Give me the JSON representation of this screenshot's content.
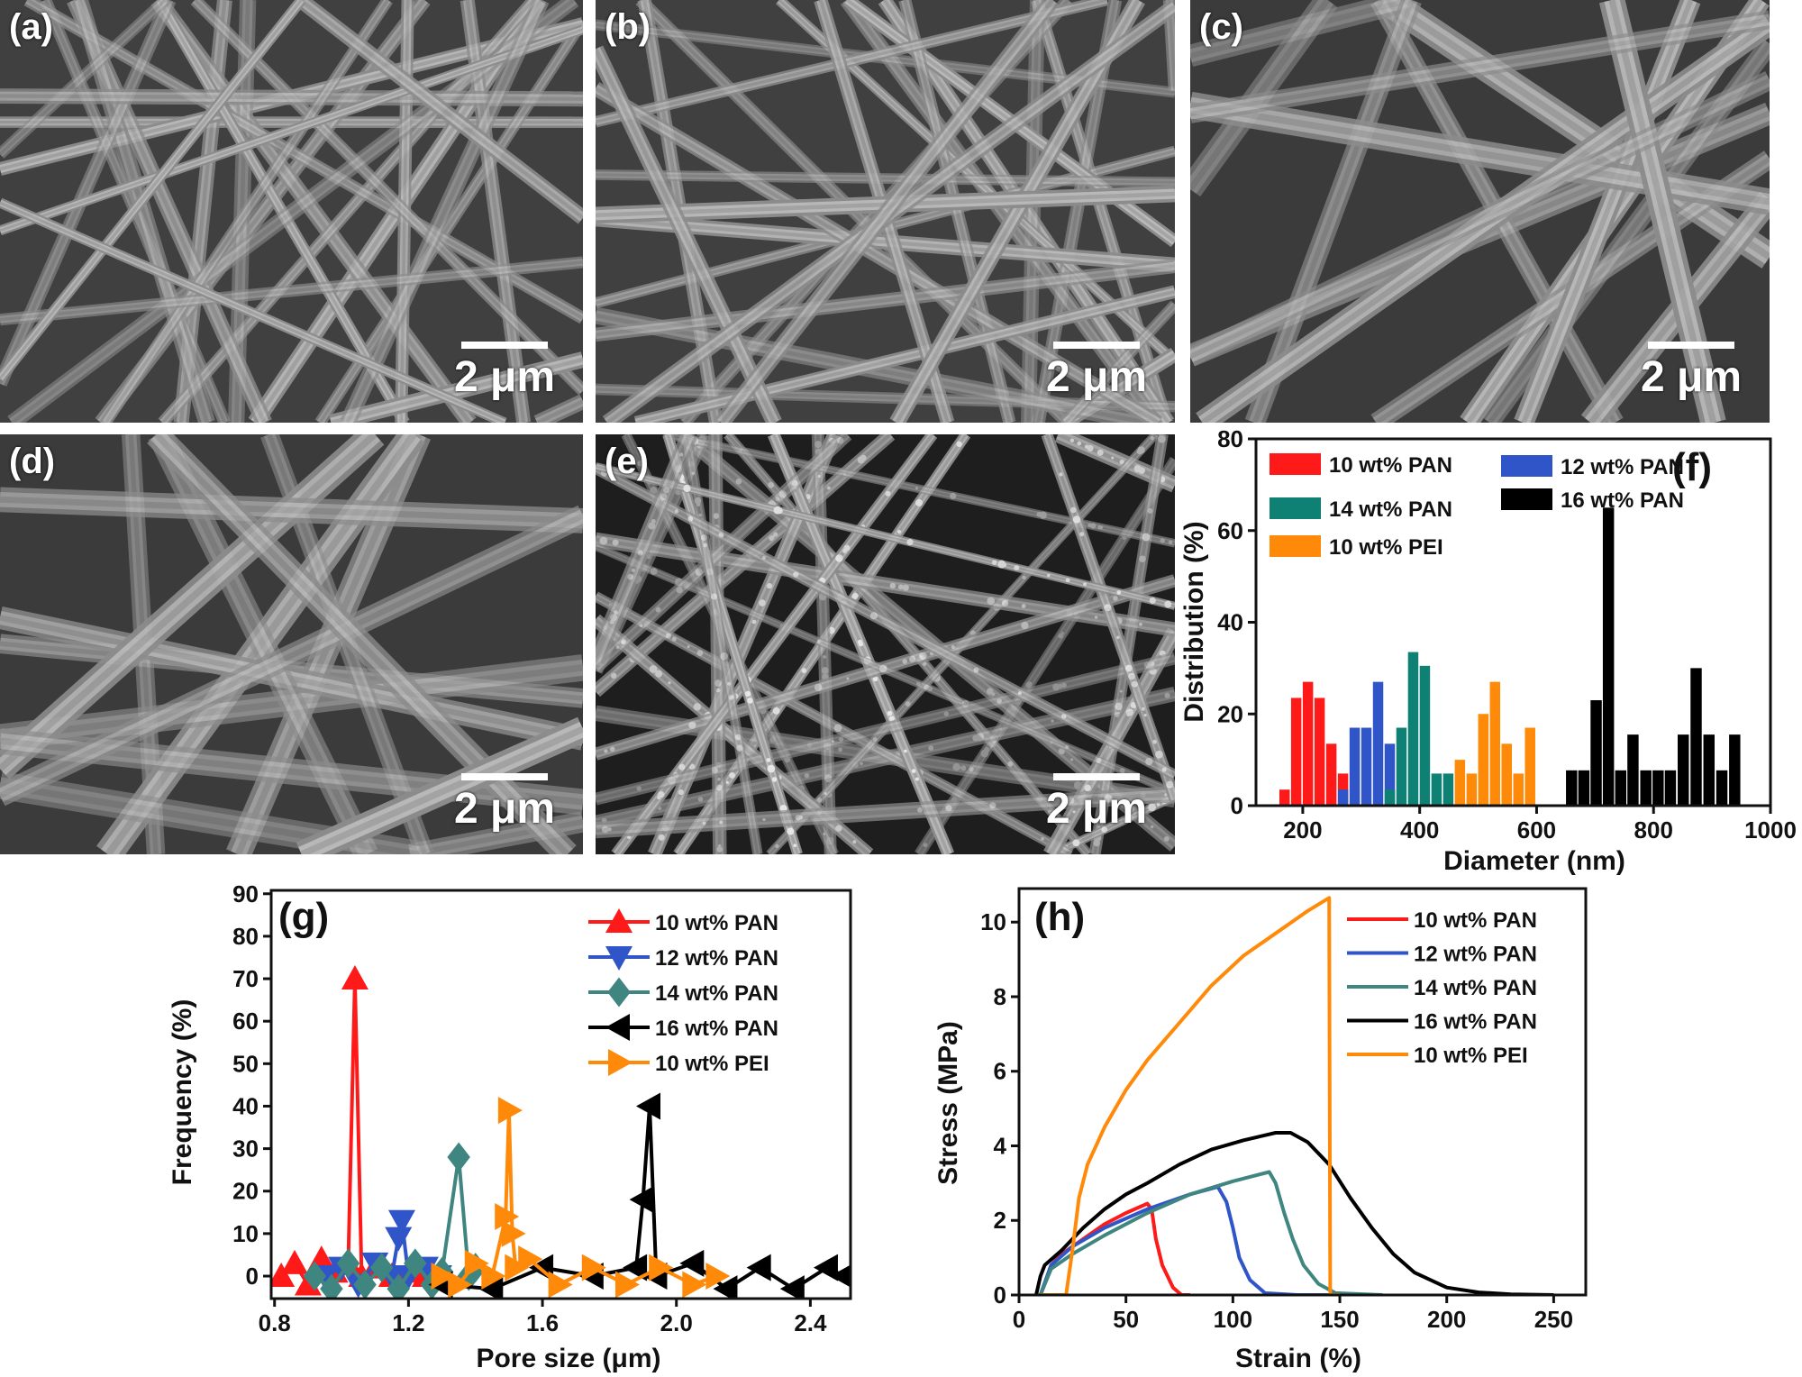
{
  "panels": [
    {
      "label": "(a)",
      "scale": "2 μm",
      "style": "normal"
    },
    {
      "label": "(b)",
      "scale": "2 μm",
      "style": "normal"
    },
    {
      "label": "(c)",
      "scale": "2 μm",
      "style": "thick"
    },
    {
      "label": "(d)",
      "scale": "2 μm",
      "style": "thick"
    },
    {
      "label": "(e)",
      "scale": "2 μm",
      "style": "rough"
    }
  ],
  "chart_data": [
    {
      "panel_label": "(f)",
      "type": "bar",
      "xlabel": "Diameter (nm)",
      "ylabel": "Distribution (%)",
      "xlim": [
        120,
        1000
      ],
      "ylim": [
        0,
        80
      ],
      "xticks": [
        200,
        400,
        600,
        800,
        1000
      ],
      "xtick_labels": [
        "200",
        "400",
        "600",
        "800",
        "1000"
      ],
      "yticks": [
        0,
        20,
        40,
        60,
        80
      ],
      "ytick_labels": [
        "0",
        "20",
        "40",
        "60",
        "80"
      ],
      "grid": false,
      "legend": "top",
      "series": [
        {
          "name": "10 wt% PAN",
          "color": "#ff1a1a",
          "bin_width": 20,
          "x": [
            170,
            190,
            210,
            230,
            250,
            270
          ],
          "values": [
            3.5,
            23.5,
            27,
            23.5,
            13.5,
            7
          ]
        },
        {
          "name": "12 wt% PAN",
          "color": "#2f55c8",
          "bin_width": 20,
          "x": [
            270,
            290,
            310,
            330,
            350
          ],
          "values": [
            3.5,
            17,
            17,
            27,
            13.5
          ]
        },
        {
          "name": "14 wt% PAN",
          "color": "#0e8074",
          "bin_width": 20,
          "x": [
            350,
            370,
            390,
            410,
            430,
            450
          ],
          "values": [
            3.5,
            17,
            33.5,
            30.5,
            7,
            7
          ]
        },
        {
          "name": "10 wt% PEI",
          "color": "#ff8a0a",
          "bin_width": 20,
          "x": [
            470,
            490,
            510,
            530,
            550,
            570,
            590
          ],
          "values": [
            10,
            7,
            20,
            27,
            13.5,
            7,
            17
          ]
        },
        {
          "name": "16 wt% PAN",
          "color": "#000000",
          "bin_width": 21.5,
          "x": [
            661,
            682,
            703,
            724,
            745,
            766,
            788,
            809,
            830,
            852,
            874,
            896,
            918,
            940
          ],
          "values": [
            7.7,
            7.7,
            23,
            65,
            7.7,
            15.5,
            7.7,
            7.7,
            7.7,
            15.5,
            30,
            15.5,
            7.7,
            15.5
          ]
        }
      ]
    },
    {
      "panel_label": "(g)",
      "type": "line",
      "xlabel": "Pore size (μm)",
      "ylabel": "Frequency (%)",
      "xlim": [
        0.79,
        2.52
      ],
      "ylim": [
        -5.3,
        90.8
      ],
      "xticks": [
        0.8,
        1.2,
        1.6,
        2.0,
        2.4
      ],
      "xtick_labels": [
        "0.8",
        "1.2",
        "1.6",
        "2.0",
        "2.4"
      ],
      "yticks": [
        0,
        10,
        20,
        30,
        40,
        50,
        60,
        70,
        80,
        90
      ],
      "ytick_labels": [
        "0",
        "10",
        "20",
        "30",
        "40",
        "50",
        "60",
        "70",
        "80",
        "90"
      ],
      "grid": false,
      "legend": "top-right",
      "series": [
        {
          "name": "10 wt% PAN",
          "color": "#ff1a1a",
          "marker": "triangle-up",
          "x": [
            0.82,
            0.86,
            0.9,
            0.94,
            0.98,
            1.02,
            1.04,
            1.06,
            1.1,
            1.15,
            1.2,
            1.25,
            1.29
          ],
          "y": [
            0,
            3,
            -2,
            4,
            1,
            3,
            70,
            0,
            2,
            0,
            1,
            0,
            0
          ]
        },
        {
          "name": "12 wt% PAN",
          "color": "#2f55c8",
          "marker": "triangle-down",
          "x": [
            0.95,
            1.0,
            1.05,
            1.1,
            1.15,
            1.17,
            1.18,
            1.2,
            1.25,
            1.29
          ],
          "y": [
            0,
            2,
            -2,
            3,
            0,
            9,
            13,
            0,
            2,
            0
          ]
        },
        {
          "name": "14 wt% PAN",
          "color": "#3f8580",
          "marker": "diamond",
          "x": [
            0.92,
            0.97,
            1.02,
            1.07,
            1.12,
            1.17,
            1.22,
            1.27,
            1.3,
            1.35,
            1.38,
            1.4
          ],
          "y": [
            0,
            -3,
            3,
            -2,
            2,
            -3,
            3,
            -2,
            1,
            28,
            0,
            2
          ]
        },
        {
          "name": "16 wt% PAN",
          "color": "#000000",
          "marker": "triangle-left",
          "x": [
            1.3,
            1.45,
            1.6,
            1.75,
            1.88,
            1.9,
            1.92,
            1.94,
            2.05,
            2.15,
            2.25,
            2.35,
            2.45,
            2.5
          ],
          "y": [
            -2,
            -3,
            2,
            0,
            2,
            18,
            40,
            0,
            3,
            -3,
            2,
            -3,
            2,
            0
          ]
        },
        {
          "name": "10 wt% PEI",
          "color": "#ff8a0a",
          "marker": "triangle-right",
          "x": [
            1.3,
            1.35,
            1.4,
            1.45,
            1.49,
            1.5,
            1.51,
            1.52,
            1.56,
            1.65,
            1.75,
            1.85,
            1.95,
            2.05,
            2.12
          ],
          "y": [
            0,
            -2,
            3,
            0,
            14,
            39,
            10,
            2,
            4,
            -2,
            2,
            -2,
            2,
            -2,
            0
          ]
        }
      ]
    },
    {
      "panel_label": "(h)",
      "type": "line",
      "xlabel": "Strain (%)",
      "ylabel": "Stress (MPa)",
      "xlim": [
        0,
        265
      ],
      "ylim": [
        0,
        10.9
      ],
      "xticks": [
        0,
        50,
        100,
        150,
        200,
        250
      ],
      "xtick_labels": [
        "0",
        "50",
        "100",
        "150",
        "200",
        "250"
      ],
      "yticks": [
        0,
        2,
        4,
        6,
        8,
        10
      ],
      "ytick_labels": [
        "0",
        "2",
        "4",
        "6",
        "8",
        "10"
      ],
      "grid": false,
      "legend": "top-right",
      "series": [
        {
          "name": "10 wt% PAN",
          "color": "#ff1a1a",
          "x": [
            10,
            12,
            15,
            20,
            30,
            40,
            50,
            60,
            62,
            64,
            67,
            72,
            76,
            80
          ],
          "y": [
            0,
            0.3,
            0.8,
            1.1,
            1.5,
            1.9,
            2.2,
            2.45,
            2.3,
            1.5,
            0.8,
            0.2,
            0,
            0
          ]
        },
        {
          "name": "12 wt% PAN",
          "color": "#2f55c8",
          "x": [
            10,
            15,
            25,
            40,
            60,
            80,
            93,
            97,
            100,
            103,
            108,
            115,
            130,
            150
          ],
          "y": [
            0,
            0.8,
            1.3,
            1.8,
            2.3,
            2.7,
            2.9,
            2.5,
            1.8,
            1.0,
            0.4,
            0.05,
            0,
            0
          ]
        },
        {
          "name": "14 wt% PAN",
          "color": "#3f8580",
          "x": [
            10,
            15,
            25,
            40,
            60,
            80,
            100,
            117,
            120,
            124,
            128,
            133,
            140,
            148,
            170
          ],
          "y": [
            0,
            0.7,
            1.1,
            1.6,
            2.2,
            2.7,
            3.05,
            3.3,
            3.0,
            2.2,
            1.5,
            0.8,
            0.3,
            0.05,
            0
          ]
        },
        {
          "name": "16 wt% PAN",
          "color": "#000000",
          "x": [
            8,
            10,
            12,
            20,
            30,
            40,
            50,
            60,
            75,
            90,
            105,
            120,
            127,
            135,
            145,
            155,
            165,
            175,
            185,
            200,
            215,
            230,
            250
          ],
          "y": [
            0,
            0.5,
            0.8,
            1.2,
            1.8,
            2.3,
            2.7,
            3.0,
            3.5,
            3.9,
            4.15,
            4.35,
            4.35,
            4.1,
            3.5,
            2.6,
            1.8,
            1.1,
            0.6,
            0.2,
            0.07,
            0.02,
            0
          ]
        },
        {
          "name": "10 wt% PEI",
          "color": "#ff8a0a",
          "x": [
            10,
            22,
            25,
            28,
            32,
            40,
            50,
            60,
            75,
            90,
            105,
            120,
            135,
            145,
            145.5,
            150
          ],
          "y": [
            0,
            0,
            1.2,
            2.6,
            3.5,
            4.5,
            5.5,
            6.3,
            7.3,
            8.3,
            9.1,
            9.7,
            10.3,
            10.65,
            0,
            0
          ]
        }
      ]
    }
  ]
}
